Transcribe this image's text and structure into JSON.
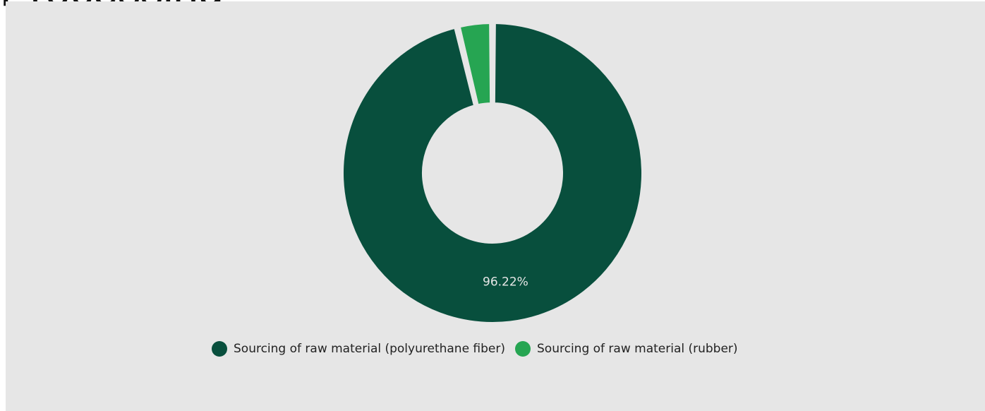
{
  "page": {
    "heading": "Processing"
  },
  "chart_data": {
    "type": "pie",
    "style": "donut",
    "title": "",
    "series": [
      {
        "name": "Sourcing of raw material (polyurethane fiber)",
        "value": 96.22,
        "label": "96.22%",
        "color": "#084f3d"
      },
      {
        "name": "Sourcing of raw material (rubber)",
        "value": 3.78,
        "label": "",
        "color": "#26a552"
      }
    ],
    "legend_position": "bottom"
  },
  "colors": {
    "panel_background": "#e6e6e6",
    "label_text": "#e6e6e6"
  }
}
